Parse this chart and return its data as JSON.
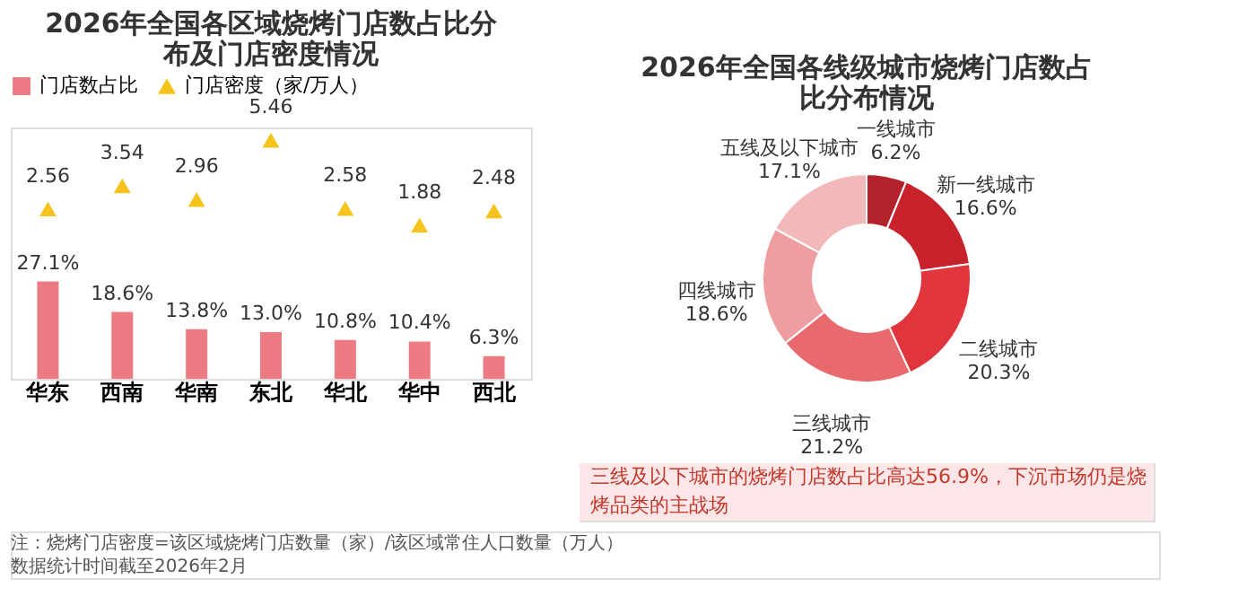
{
  "chart_data": [
    {
      "type": "bar",
      "title": "2026年全国各区域烧烤门店数占比分布及门店密度情况",
      "categories": [
        "华东",
        "西南",
        "华南",
        "东北",
        "华北",
        "华中",
        "西北"
      ],
      "series": [
        {
          "name": "门店数占比",
          "type": "bar",
          "color": "#ec7b83",
          "values": [
            27.1,
            18.6,
            13.8,
            13.0,
            10.8,
            10.4,
            6.3
          ],
          "value_labels": [
            "27.1%",
            "18.6%",
            "13.8%",
            "13.0%",
            "10.8%",
            "10.4%",
            "6.3%"
          ]
        },
        {
          "name": "门店密度（家/万人）",
          "type": "scatter",
          "axis": "y2",
          "marker": "triangle",
          "color": "#f5c31c",
          "values": [
            2.56,
            3.54,
            2.96,
            5.46,
            2.58,
            1.88,
            2.48
          ],
          "value_labels": [
            "2.56",
            "3.54",
            "2.96",
            "5.46",
            "2.58",
            "1.88",
            "2.48"
          ]
        }
      ],
      "legend": "top",
      "tick_labels": "x",
      "ylim": [
        0,
        70
      ],
      "y2lim": [
        -4.6,
        6
      ],
      "annotations": [
        "注：烧烤门店密度=该区域烧烤门店数量（家）/该区域常住人口数量（万人）",
        "数据统计时间截至2026年2月"
      ]
    },
    {
      "type": "donut",
      "title": "2026年全国各线级城市烧烤门店数占比分布情况",
      "categories": [
        "一线城市",
        "新一线城市",
        "二线城市",
        "三线城市",
        "四线城市",
        "五线及以下城市"
      ],
      "values": [
        6.2,
        16.6,
        20.3,
        21.2,
        18.6,
        17.1
      ],
      "colors": [
        "#b3212a",
        "#c8232d",
        "#e0353c",
        "#e86a6f",
        "#ee9ea0",
        "#f3b9ba"
      ],
      "value_labels": [
        "6.2%",
        "16.6%",
        "20.3%",
        "21.2%",
        "18.6%",
        "17.1%"
      ],
      "annotations": [
        "三线及以下城市的烧烤门店数占比高达56.9%，下沉市场仍是烧烤品类的主战场"
      ]
    }
  ]
}
